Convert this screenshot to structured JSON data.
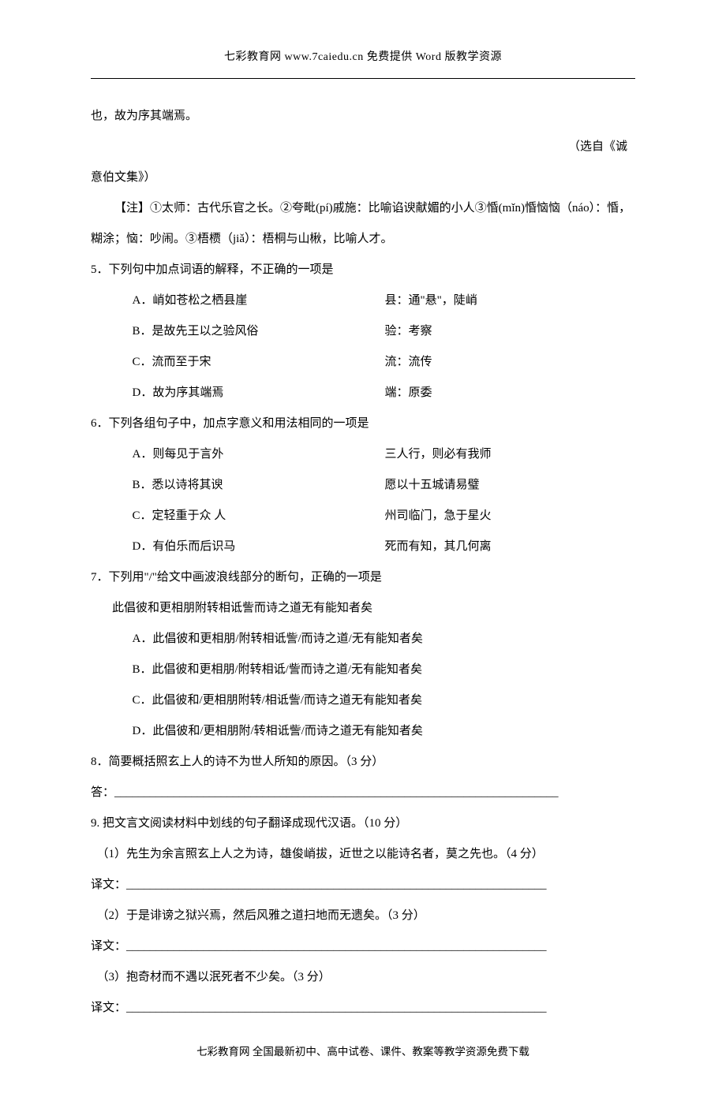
{
  "header": {
    "text": "七彩教育网 www.7caiedu.cn 免费提供 Word 版教学资源"
  },
  "intro": {
    "line1": "也，故为序其端焉。",
    "source_prefix": "（选自《诚",
    "source_suffix": "意伯文集》）",
    "note": "【注】①太师：古代乐官之长。②夸毗(pí)戚施：比喻谄谀献媚的小人③惛(mǐn)惛恼恼（náo）：惛，糊涂；恼：吵闹。③梧槚（jiǎ）：梧桐与山楸，比喻人才。"
  },
  "q5": {
    "stem": "5．下列句中加点词语的解释，不正确的一项是",
    "a_left": "A．峭如苍松之栖县崖",
    "a_right": "县：通\"悬\"，陡峭",
    "b_left": "B．是故先王以之验风俗",
    "b_right": "验：考察",
    "c_left": "C．流而至于宋",
    "c_right": "流：流传",
    "d_left": "D．故为序其端焉",
    "d_right": "端：原委"
  },
  "q6": {
    "stem": "6．下列各组句子中，加点字意义和用法相同的一项是",
    "a_left": "A．则每见于言外",
    "a_right": "三人行，则必有我师",
    "b_left": "B．悉以诗将其谀",
    "b_right": "愿以十五城请易璧",
    "c_left": "C．定轻重于众 人",
    "c_right": "州司临门，急于星火",
    "d_left": "D．有伯乐而后识马",
    "d_right": "死而有知，其几何离"
  },
  "q7": {
    "stem": "7．下列用\"/\"给文中画波浪线部分的断句，正确的一项是",
    "original": "此倡彼和更相朋附转相诋訾而诗之道无有能知者矣",
    "a": "A．此倡彼和更相朋/附转相诋訾/而诗之道/无有能知者矣",
    "b": "B．此倡彼和更相朋/附转相诋/訾而诗之道/无有能知者矣",
    "c": "C．此倡彼和/更相朋附转/相诋訾/而诗之道无有能知者矣",
    "d": "D．此倡彼和/更相朋附/转相诋訾/而诗之道无有能知者矣"
  },
  "q8": {
    "stem": "8．简要概括照玄上人的诗不为世人所知的原因。（3 分）",
    "answer_label": "答：",
    "blank": "___________________________________________________________________________"
  },
  "q9": {
    "stem": "9. 把文言文阅读材料中划线的句子翻译成现代汉语。（10 分）",
    "s1": "（1）先生为余言照玄上人之为诗，雄俊峭拔，近世之以能诗名者，莫之先也。（4 分）",
    "s2": "（2）于是诽谤之狱兴焉，然后风雅之道扫地而无遗矣。（3 分）",
    "s3": "（3）抱奇材而不遇以泯死者不少矣。（3 分）",
    "trans_label": "译文：",
    "blank": "_______________________________________________________________________"
  },
  "footer": {
    "text": "七彩教育网 全国最新初中、高中试卷、课件、教案等教学资源免费下载"
  }
}
